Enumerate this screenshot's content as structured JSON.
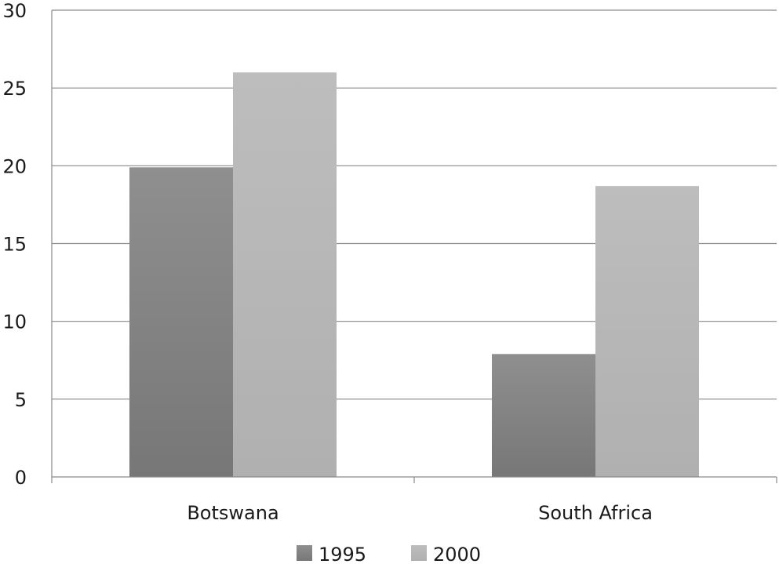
{
  "chart_data": {
    "type": "bar",
    "categories": [
      "Botswana",
      "South Africa"
    ],
    "series": [
      {
        "name": "1995",
        "values": [
          19.9,
          7.9
        ],
        "color": "#808080"
      },
      {
        "name": "2000",
        "values": [
          26.0,
          18.7
        ],
        "color": "#b3b3b3"
      }
    ],
    "title": "",
    "xlabel": "",
    "ylabel": "",
    "ylim": [
      0,
      30
    ],
    "yticks": [
      0,
      5,
      10,
      15,
      20,
      25,
      30
    ],
    "ytick_labels": [
      "0",
      "5",
      "10",
      "15",
      "20",
      "25",
      "30"
    ],
    "grid": true,
    "legend": "bottom"
  }
}
